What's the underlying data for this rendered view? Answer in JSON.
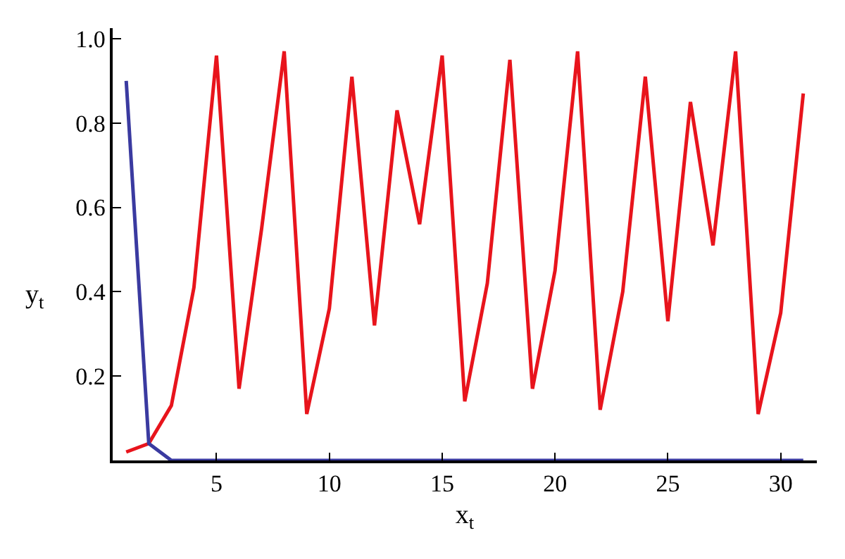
{
  "chart_data": {
    "type": "line",
    "xlabel": "x$_{t}$",
    "ylabel": "y$_{t}$",
    "x": [
      1,
      2,
      3,
      4,
      5,
      6,
      7,
      8,
      9,
      10,
      11,
      12,
      13,
      14,
      15,
      16,
      17,
      18,
      19,
      20,
      21,
      22,
      23,
      24,
      25,
      26,
      27,
      28,
      29,
      30,
      31
    ],
    "series": [
      {
        "color": "#e8141c",
        "values": [
          0.02,
          0.04,
          0.13,
          0.41,
          0.96,
          0.17,
          0.55,
          0.97,
          0.11,
          0.36,
          0.91,
          0.32,
          0.83,
          0.56,
          0.96,
          0.14,
          0.42,
          0.95,
          0.17,
          0.45,
          0.97,
          0.12,
          0.4,
          0.91,
          0.33,
          0.85,
          0.51,
          0.97,
          0.11,
          0.35,
          0.87
        ]
      },
      {
        "color": "#3a3aa0",
        "values": [
          0.9,
          0.04,
          0,
          0,
          0,
          0,
          0,
          0,
          0,
          0,
          0,
          0,
          0,
          0,
          0,
          0,
          0,
          0,
          0,
          0,
          0,
          0,
          0,
          0,
          0,
          0,
          0,
          0,
          0,
          0,
          0
        ]
      }
    ],
    "xlim": [
      0.4,
      31.6
    ],
    "ylim": [
      0,
      1.025
    ],
    "xticks": [
      5,
      10,
      15,
      20,
      25,
      30
    ],
    "yticks": [
      0.2,
      0.4,
      0.6,
      0.8,
      {
        "value": 1,
        "label": "1.0"
      }
    ],
    "grid": false,
    "marker": "none",
    "line_style": "solid"
  }
}
